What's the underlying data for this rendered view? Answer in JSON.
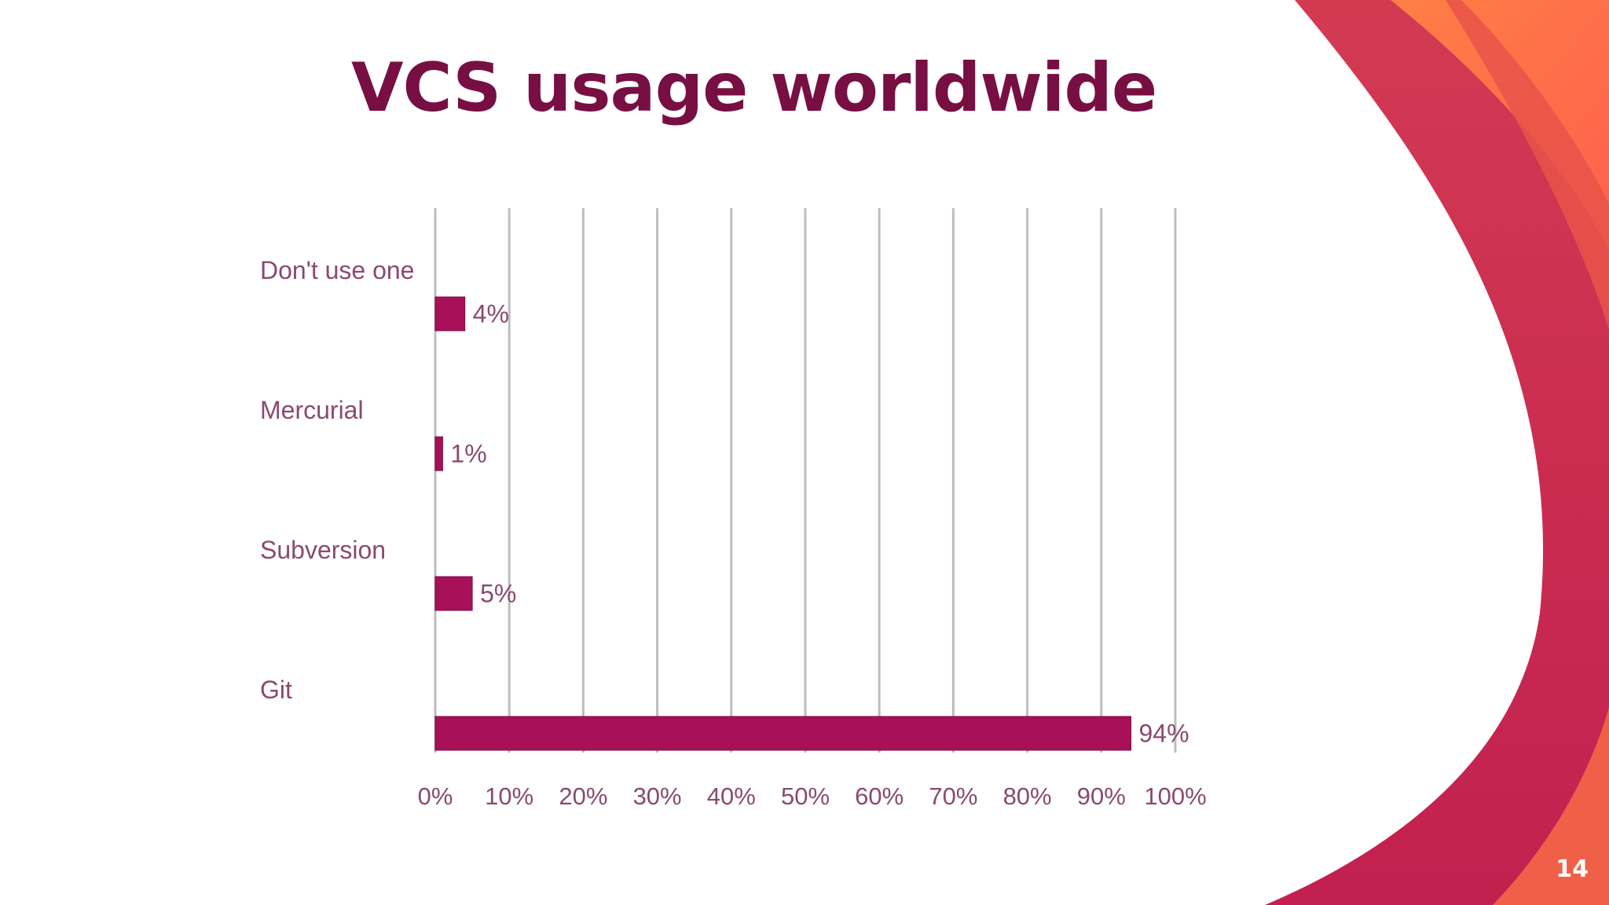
{
  "slide": {
    "title": "VCS usage worldwide",
    "page_number": "14"
  },
  "colors": {
    "title": "#780f43",
    "bar": "#a8105a",
    "label": "#8a4a6e",
    "grid": "#bdbdbd",
    "deco_light": "#ff8a3d",
    "deco_mid": "#e9534a",
    "deco_dark": "#c4224f"
  },
  "chart_data": {
    "type": "bar",
    "orientation": "horizontal",
    "categories": [
      "Don't use one",
      "Mercurial",
      "Subversion",
      "Git"
    ],
    "values": [
      4,
      1,
      5,
      94
    ],
    "data_labels": [
      "4%",
      "1%",
      "5%",
      "94%"
    ],
    "xlim": [
      0,
      100
    ],
    "x_ticks": [
      "0%",
      "10%",
      "20%",
      "30%",
      "40%",
      "50%",
      "60%",
      "70%",
      "80%",
      "90%",
      "100%"
    ],
    "grid": "vertical"
  }
}
